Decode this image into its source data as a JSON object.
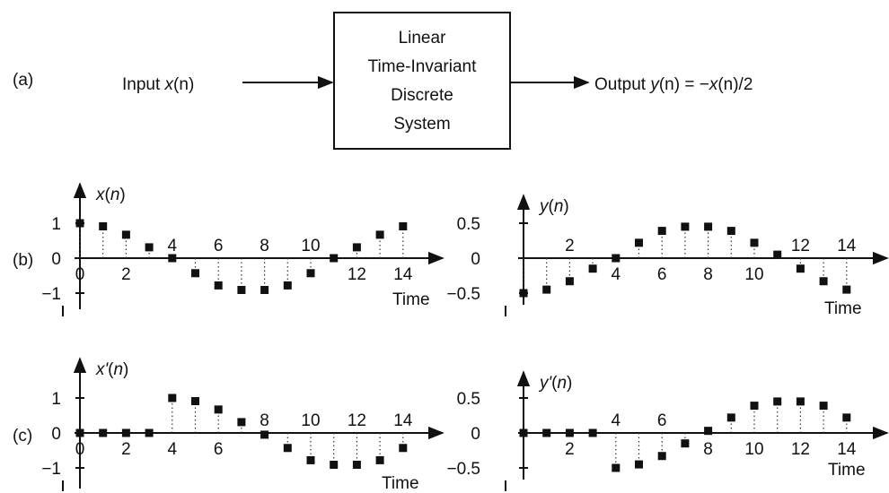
{
  "block_diagram": {
    "panel_label": "(a)",
    "input_text": "Input ",
    "input_var": "x",
    "input_arg": "(n)",
    "box_lines": [
      "Linear",
      "Time-Invariant",
      "Discrete",
      "System"
    ],
    "output_text": "Output ",
    "output_var": "y",
    "output_mid": "(n) = −",
    "output_var2": "x",
    "output_tail": "(n)/2"
  },
  "chart_data": [
    {
      "type": "stem",
      "panel_label": "(b)",
      "ylabel": "x(n)",
      "xlabel": "Time",
      "x": [
        0,
        1,
        2,
        3,
        4,
        5,
        6,
        7,
        8,
        9,
        10,
        11,
        12,
        13,
        14
      ],
      "values": [
        1.0,
        0.91,
        0.67,
        0.31,
        0.0,
        -0.43,
        -0.78,
        -0.91,
        -0.91,
        -0.78,
        -0.43,
        0.0,
        0.31,
        0.67,
        0.91
      ],
      "ytick_labels": [
        "1",
        "0",
        "−1"
      ],
      "xtick_labels_below": [
        "0",
        "2"
      ],
      "xtick_labels_above": [
        "4",
        "6",
        "8",
        "10"
      ],
      "xtick_labels_below2": [
        "12",
        "14"
      ]
    },
    {
      "type": "stem",
      "panel_label": "",
      "ylabel": "y(n)",
      "xlabel": "Time",
      "x": [
        0,
        1,
        2,
        3,
        4,
        5,
        6,
        7,
        8,
        9,
        10,
        11,
        12,
        13,
        14
      ],
      "values": [
        -0.5,
        -0.45,
        -0.33,
        -0.15,
        0.0,
        0.22,
        0.39,
        0.45,
        0.45,
        0.39,
        0.22,
        0.05,
        -0.15,
        -0.33,
        -0.45
      ],
      "ytick_labels": [
        "0.5",
        "0",
        "−0.5"
      ],
      "xtick_labels_above": [
        "2"
      ],
      "xtick_labels_below": [
        "4",
        "6",
        "8",
        "10"
      ],
      "xtick_labels_above2": [
        "12",
        "14"
      ]
    },
    {
      "type": "stem",
      "panel_label": "(c)",
      "ylabel": "x'(n)",
      "xlabel": "Time",
      "x": [
        0,
        1,
        2,
        3,
        4,
        5,
        6,
        7,
        8,
        9,
        10,
        11,
        12,
        13,
        14
      ],
      "values": [
        0,
        0,
        0,
        0,
        1.0,
        0.91,
        0.67,
        0.31,
        -0.05,
        -0.43,
        -0.78,
        -0.91,
        -0.91,
        -0.78,
        -0.43
      ],
      "ytick_labels": [
        "1",
        "0",
        "−1"
      ],
      "xtick_labels_below": [
        "0",
        "2",
        "4",
        "6"
      ],
      "xtick_labels_above": [
        "8",
        "10",
        "12",
        "14"
      ]
    },
    {
      "type": "stem",
      "panel_label": "",
      "ylabel": "y'(n)",
      "xlabel": "Time",
      "x": [
        0,
        1,
        2,
        3,
        4,
        5,
        6,
        7,
        8,
        9,
        10,
        11,
        12,
        13,
        14
      ],
      "values": [
        0,
        0,
        0,
        0,
        -0.5,
        -0.45,
        -0.33,
        -0.15,
        0.03,
        0.22,
        0.39,
        0.45,
        0.45,
        0.39,
        0.22
      ],
      "ytick_labels": [
        "0.5",
        "0",
        "−0.5"
      ],
      "xtick_labels_below": [
        "2"
      ],
      "xtick_labels_above": [
        "4",
        "6"
      ],
      "xtick_labels_below2": [
        "8",
        "10",
        "12",
        "14"
      ]
    }
  ]
}
